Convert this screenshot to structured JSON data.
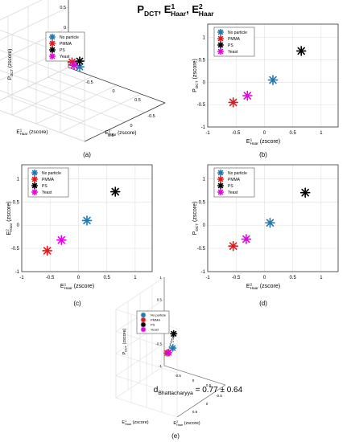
{
  "figure": {
    "title": {
      "base": [
        "P",
        "E",
        "E"
      ],
      "sub": [
        "DCT",
        "Haar",
        "Haar"
      ],
      "sup": [
        "",
        "1",
        "2"
      ],
      "sep": ", "
    },
    "panel_labels": [
      "(a)",
      "(b)",
      "(c)",
      "(d)",
      "(e)"
    ],
    "legend_entries": [
      "No particle",
      "PMMA",
      "PS",
      "Yeast"
    ],
    "colors": {
      "No particle": "#1f77b4",
      "PMMA": "#e31a1c",
      "PS": "#000000",
      "Yeast": "#e600e6",
      "hull": "#444444"
    },
    "axis_texts": {
      "p_dct": {
        "base": "P",
        "sub": "DCT",
        "sup": "",
        "unit": "(zscore)"
      },
      "e1": {
        "base": "E",
        "sub": "Haar",
        "sup": "1",
        "unit": "(zscore)"
      },
      "e2": {
        "base": "E",
        "sub": "Haar",
        "sup": "2",
        "unit": "(zscore)"
      },
      "e2_short": {
        "base": "E",
        "sub": "Haar",
        "sup": "2",
        "unit": "(zscore)"
      }
    },
    "annotation_e": {
      "base": "d",
      "sub": "Bhattacharyya",
      "text": " = 0.77 ± 0.64"
    }
  },
  "chart_data": [
    {
      "type": "scatter",
      "panel": "a",
      "projection": "3d",
      "xlabel": "E1 Haar (zscore)",
      "ylabel": "E2 Haar (zscore)",
      "zlabel": "P DCT (zscore)",
      "ticks": {
        "x": [
          -0.5,
          0,
          0.5
        ],
        "y": [
          -0.5,
          0,
          0.5
        ],
        "z": [
          0,
          0.5
        ]
      },
      "grid": true,
      "legend": "top-left",
      "series": [
        {
          "name": "No particle",
          "x": 0.15,
          "y": 0.1,
          "z": 0.05
        },
        {
          "name": "PMMA",
          "x": -0.55,
          "y": -0.55,
          "z": -0.45
        },
        {
          "name": "PS",
          "x": 0.65,
          "y": 0.7,
          "z": 0.7
        },
        {
          "name": "Yeast",
          "x": -0.3,
          "y": -0.3,
          "z": -0.3
        }
      ]
    },
    {
      "type": "scatter",
      "panel": "b",
      "xlabel": "E1 Haar (zscore)",
      "ylabel": "P DCT (zscore)",
      "xlim": [
        -1,
        1.3
      ],
      "ylim": [
        -1,
        1.3
      ],
      "xticks": [
        -1,
        -0.5,
        0,
        0.5,
        1
      ],
      "yticks": [
        -1,
        -0.5,
        0,
        0.5,
        1
      ],
      "grid": true,
      "legend": "top-left",
      "series": [
        {
          "name": "No particle",
          "x": 0.15,
          "y": 0.05
        },
        {
          "name": "PMMA",
          "x": -0.55,
          "y": -0.45
        },
        {
          "name": "PS",
          "x": 0.65,
          "y": 0.7
        },
        {
          "name": "Yeast",
          "x": -0.3,
          "y": -0.3
        }
      ]
    },
    {
      "type": "scatter",
      "panel": "c",
      "xlabel": "E1 Haar (zscore)",
      "ylabel": "E2 Haar (zscore)",
      "xlim": [
        -1,
        1.3
      ],
      "ylim": [
        -1,
        1.3
      ],
      "xticks": [
        -1,
        -0.5,
        0,
        0.5,
        1
      ],
      "yticks": [
        -1,
        -0.5,
        0,
        0.5,
        1
      ],
      "grid": true,
      "legend": "top-left",
      "series": [
        {
          "name": "No particle",
          "x": 0.15,
          "y": 0.1
        },
        {
          "name": "PMMA",
          "x": -0.55,
          "y": -0.55
        },
        {
          "name": "PS",
          "x": 0.65,
          "y": 0.72
        },
        {
          "name": "Yeast",
          "x": -0.3,
          "y": -0.32
        }
      ]
    },
    {
      "type": "scatter",
      "panel": "d",
      "xlabel": "E2 Haar (zscore)",
      "ylabel": "P DCT (zscore)",
      "xlim": [
        -1,
        1.3
      ],
      "ylim": [
        -1,
        1.3
      ],
      "xticks": [
        -1,
        -0.5,
        0,
        0.5,
        1
      ],
      "yticks": [
        -1,
        -0.5,
        0,
        0.5,
        1
      ],
      "grid": true,
      "legend": "top-left",
      "series": [
        {
          "name": "No particle",
          "x": 0.1,
          "y": 0.05
        },
        {
          "name": "PMMA",
          "x": -0.55,
          "y": -0.45
        },
        {
          "name": "PS",
          "x": 0.72,
          "y": 0.7
        },
        {
          "name": "Yeast",
          "x": -0.32,
          "y": -0.3
        }
      ]
    },
    {
      "type": "scatter",
      "panel": "e",
      "projection": "3d",
      "xlabel": "E1 Haar (zscore)",
      "ylabel": "E2 Haar (zscore)",
      "zlabel": "P DCT (zscore)",
      "ticks": {
        "x": [
          -0.5,
          0,
          0.5
        ],
        "y": [
          -0.5,
          0,
          0.5
        ],
        "z": [
          -1,
          -0.5,
          0,
          0.5,
          1
        ]
      },
      "convex_hull": "dashed",
      "legend": "top-left",
      "series": [
        {
          "name": "No particle",
          "x": 0.15,
          "y": 0.1,
          "z": 0.05
        },
        {
          "name": "PMMA",
          "x": -0.55,
          "y": -0.55,
          "z": -0.45
        },
        {
          "name": "PS",
          "x": 0.65,
          "y": 0.7,
          "z": 0.7
        },
        {
          "name": "Yeast",
          "x": -0.3,
          "y": -0.3,
          "z": -0.3
        }
      ]
    }
  ]
}
